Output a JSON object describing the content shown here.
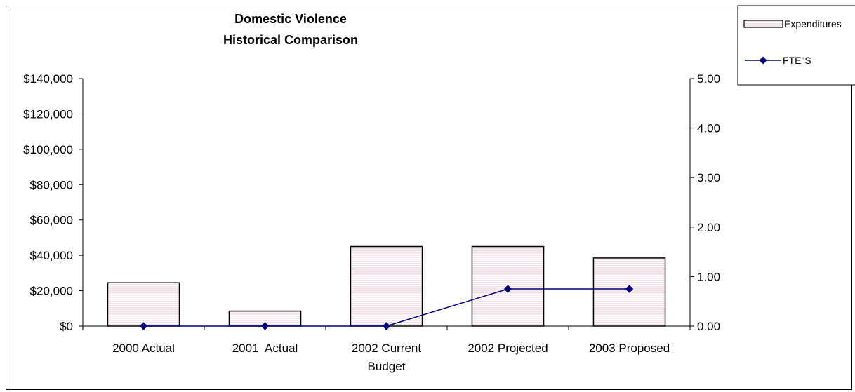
{
  "chart_data": {
    "type": "bar",
    "title": [
      "Domestic Violence",
      "Historical Comparison"
    ],
    "categories": [
      [
        "2000 Actual"
      ],
      [
        "2001  Actual"
      ],
      [
        "2002 Current",
        "Budget"
      ],
      [
        "2002 Projected"
      ],
      [
        "2003 Proposed"
      ]
    ],
    "series": [
      {
        "name": "Expenditures",
        "type": "bar",
        "axis": "left",
        "values": [
          24500,
          8500,
          45000,
          45000,
          38500
        ],
        "fill": "#f3dfe6",
        "stroke": "#000000"
      },
      {
        "name": "FTE\"S",
        "type": "line",
        "axis": "right",
        "values": [
          0,
          0,
          0,
          0.75,
          0.75
        ],
        "color": "#000080",
        "marker": "diamond"
      }
    ],
    "y_left": {
      "ylim": [
        0,
        140000
      ],
      "ticks": [
        0,
        20000,
        40000,
        60000,
        80000,
        100000,
        120000,
        140000
      ],
      "tick_labels": [
        "$0",
        "$20,000",
        "$40,000",
        "$60,000",
        "$80,000",
        "$100,000",
        "$120,000",
        "$140,000"
      ]
    },
    "y_right": {
      "ylim": [
        0,
        5
      ],
      "ticks": [
        0,
        1,
        2,
        3,
        4,
        5
      ],
      "tick_labels": [
        "0.00",
        "1.00",
        "2.00",
        "3.00",
        "4.00",
        "5.00"
      ]
    },
    "grid": false,
    "legend_position": "top-right"
  }
}
